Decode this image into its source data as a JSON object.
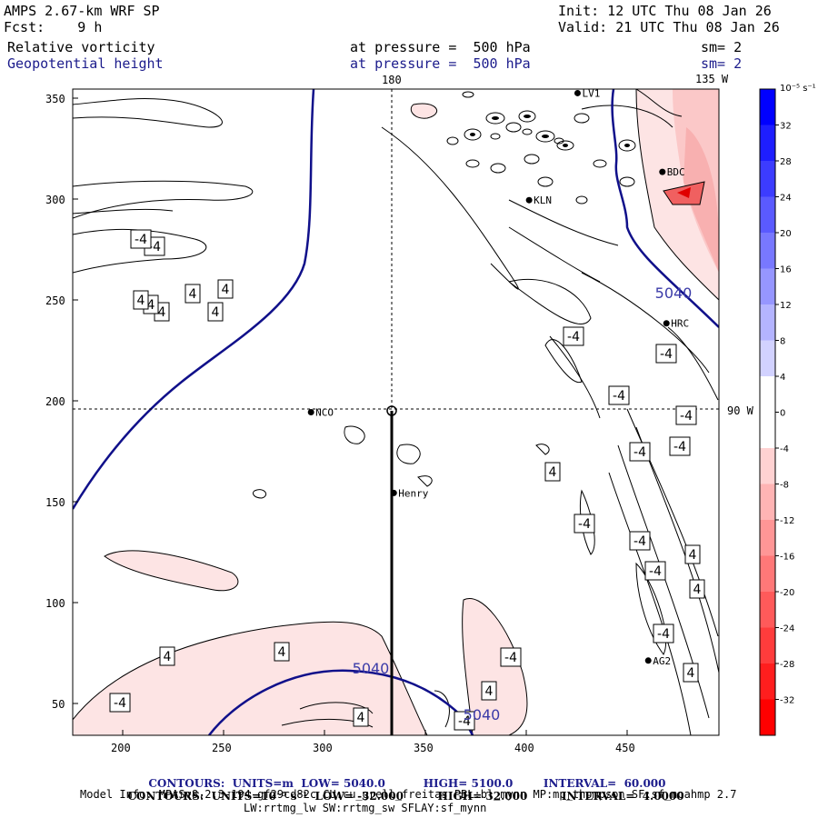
{
  "header": {
    "model_line": "AMPS 2.67-km WRF SP",
    "fcst_line": "Fcst:    9 h",
    "init_line": "Init: 12 UTC Thu 08 Jan 26",
    "valid_line": "Valid: 21 UTC Thu 08 Jan 26",
    "field1": "Relative vorticity",
    "field1_level": "at pressure =  500 hPa",
    "field1_sm": "sm= 2",
    "field2": "Geopotential height",
    "field2_level": "at pressure =  500 hPa",
    "field2_sm": "sm= 2",
    "lon_180": "180",
    "lon_135": "135 W",
    "lat_90": "90 W"
  },
  "axes": {
    "x_ticks": [
      "200",
      "250",
      "300",
      "350",
      "400",
      "450"
    ],
    "y_ticks": [
      "350",
      "300",
      "250",
      "200",
      "150",
      "100",
      "50"
    ]
  },
  "stations": [
    {
      "name": "NCO",
      "x": 293,
      "y": 195
    },
    {
      "name": "Henry",
      "x": 334,
      "y": 155
    },
    {
      "name": "KLN",
      "x": 401,
      "y": 300
    },
    {
      "name": "BDC",
      "x": 467,
      "y": 314
    },
    {
      "name": "HRC",
      "x": 469,
      "y": 239
    },
    {
      "name": "AG2",
      "x": 460,
      "y": 72
    },
    {
      "name": "LV1",
      "x": 425,
      "y": 353
    }
  ],
  "contour_labels": {
    "height": [
      "5040",
      "5040",
      "5040"
    ],
    "vorticity": [
      "4",
      "4",
      "4",
      "4",
      "4",
      "4",
      "-4",
      "-4",
      "-4",
      "-4",
      "-4",
      "-4",
      "-4",
      "-4",
      "4",
      "-4",
      "-4",
      "4",
      "-4",
      "4",
      "-4",
      "4",
      "-4",
      "4",
      "-4",
      "4",
      "4",
      "4",
      "-4"
    ]
  },
  "colorbar": {
    "unit": "10⁻⁵ s⁻¹",
    "labels": [
      "32",
      "28",
      "24",
      "20",
      "16",
      "12",
      "8",
      "4",
      "0",
      "-4",
      "-8",
      "-12",
      "-16",
      "-20",
      "-24",
      "-28",
      "-32"
    ],
    "colors": [
      "#0000ff",
      "#1e1eff",
      "#3c3cff",
      "#5a5aff",
      "#7878ff",
      "#9696ff",
      "#b4b4ff",
      "#d2d2ff",
      "#ffffff",
      "#ffffff",
      "#ffd2d2",
      "#ffb4b4",
      "#ff9696",
      "#ff7878",
      "#ff5a5a",
      "#ff3c3c",
      "#ff1e1e",
      "#ff0000"
    ]
  },
  "footer": {
    "contours1_head": "CONTOURS:  UNITS=m  LOW=",
    "contours1_low": "5040.0",
    "contours1_high_label": "HIGH=",
    "contours1_high": "5100.0",
    "contours1_int_label": "INTERVAL=",
    "contours1_int": "60.000",
    "contours2_head": "CONTOURS:  UNITS=10⁻⁵ s⁻¹  LOW=",
    "contours2_low": "-32.000",
    "contours2_high_label": "HIGH=",
    "contours2_high": "32.000",
    "contours2_int_label": "INTERVAL=",
    "contours2_int": "4.0000",
    "model_info": "Model Info: MPASv8.2.3-194-gf29cd82c CU:cu_grell_freitas PBL:bl_mynn MP:mp_thompson SF:sf_noahmp 2.7",
    "model_info2": "LW:rrtmg_lw SW:rrtmg_sw SFLAY:sf_mynn"
  }
}
